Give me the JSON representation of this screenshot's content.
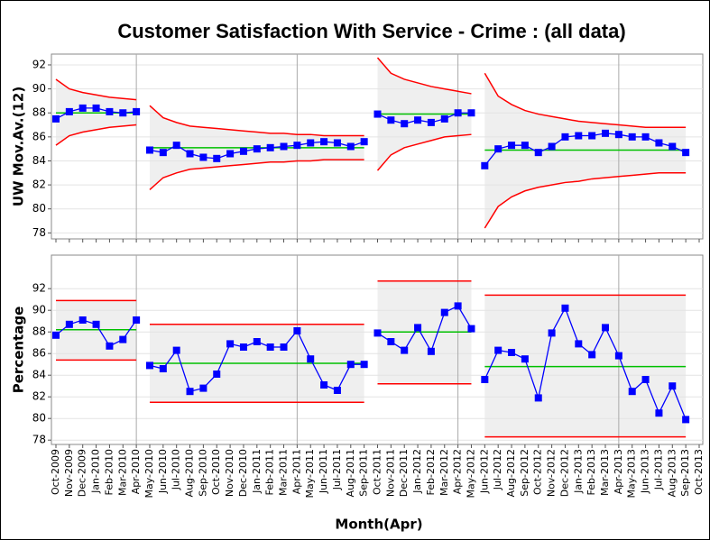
{
  "chart_data": {
    "title": "Customer Satisfaction With Service - Crime : (all data)",
    "x_label": "Month(Apr)",
    "categories": [
      "Oct-2009",
      "Nov-2009",
      "Dec-2009",
      "Jan-2010",
      "Feb-2010",
      "Mar-2010",
      "Apr-2010",
      "May-2010",
      "Jun-2010",
      "Jul-2010",
      "Aug-2010",
      "Sep-2010",
      "Oct-2010",
      "Nov-2010",
      "Dec-2010",
      "Jan-2011",
      "Feb-2011",
      "Mar-2011",
      "Apr-2011",
      "May-2011",
      "Jun-2011",
      "Jul-2011",
      "Aug-2011",
      "Sep-2011",
      "Oct-2011",
      "Nov-2011",
      "Dec-2011",
      "Jan-2012",
      "Feb-2012",
      "Mar-2012",
      "Apr-2012",
      "May-2012",
      "Jun-2012",
      "Jul-2012",
      "Aug-2012",
      "Sep-2012",
      "Oct-2012",
      "Nov-2012",
      "Dec-2012",
      "Jan-2013",
      "Feb-2013",
      "Mar-2013",
      "Apr-2013",
      "May-2013",
      "Jun-2013",
      "Jul-2013",
      "Aug-2013",
      "Sep-2013",
      "Oct-2013"
    ],
    "vertical_lines_at": [
      "Apr-2010",
      "Apr-2011",
      "Apr-2012",
      "Apr-2013"
    ],
    "panels": [
      {
        "type": "control",
        "y_label": "UW Mov.Av.(12)",
        "ylim": [
          77.5,
          92.9
        ],
        "yticks": [
          78,
          80,
          82,
          84,
          86,
          88,
          90,
          92
        ],
        "grid": true,
        "point_color": "#0000ff",
        "center_color": "#00c000",
        "limit_color": "#ff0000",
        "segments": [
          {
            "start": "Oct-2009",
            "values": [
              87.5,
              88.1,
              88.4,
              88.4,
              88.1,
              88.0,
              88.1
            ],
            "center": 88.0,
            "ucl": [
              90.8,
              90.0,
              89.7,
              89.5,
              89.3,
              89.2,
              89.1
            ],
            "lcl": [
              85.3,
              86.1,
              86.4,
              86.6,
              86.8,
              86.9,
              87.0
            ]
          },
          {
            "start": "May-2010",
            "values": [
              84.9,
              84.7,
              85.3,
              84.6,
              84.3,
              84.2,
              84.6,
              84.8,
              85.0,
              85.1,
              85.2,
              85.3,
              85.5,
              85.6,
              85.5,
              85.2,
              85.6
            ],
            "center": 85.1,
            "ucl": [
              88.6,
              87.6,
              87.2,
              86.9,
              86.8,
              86.7,
              86.6,
              86.5,
              86.4,
              86.3,
              86.3,
              86.2,
              86.2,
              86.1,
              86.1,
              86.1,
              86.1
            ],
            "lcl": [
              81.6,
              82.6,
              83.0,
              83.3,
              83.4,
              83.5,
              83.6,
              83.7,
              83.8,
              83.9,
              83.9,
              84.0,
              84.0,
              84.1,
              84.1,
              84.1,
              84.1
            ]
          },
          {
            "start": "Oct-2011",
            "values": [
              87.9,
              87.4,
              87.1,
              87.4,
              87.2,
              87.5,
              88.0,
              88.0
            ],
            "center": 87.9,
            "ucl": [
              92.6,
              91.3,
              90.8,
              90.5,
              90.2,
              90.0,
              89.8,
              89.6
            ],
            "lcl": [
              83.2,
              84.5,
              85.1,
              85.4,
              85.7,
              86.0,
              86.1,
              86.2
            ]
          },
          {
            "start": "Jun-2012",
            "values": [
              83.6,
              85.0,
              85.3,
              85.3,
              84.7,
              85.2,
              86.0,
              86.1,
              86.1,
              86.3,
              86.2,
              86.0,
              86.0,
              85.5,
              85.2,
              84.7
            ],
            "center": 84.9,
            "ucl": [
              91.3,
              89.4,
              88.7,
              88.2,
              87.9,
              87.7,
              87.5,
              87.3,
              87.2,
              87.1,
              87.0,
              86.9,
              86.8,
              86.8,
              86.8,
              86.8
            ],
            "lcl": [
              78.4,
              80.2,
              81.0,
              81.5,
              81.8,
              82.0,
              82.2,
              82.3,
              82.5,
              82.6,
              82.7,
              82.8,
              82.9,
              83.0,
              83.0,
              83.0
            ]
          }
        ]
      },
      {
        "type": "control",
        "y_label": "Percentage",
        "ylim": [
          77.6,
          95.1
        ],
        "yticks": [
          78,
          80,
          82,
          84,
          86,
          88,
          90,
          92
        ],
        "grid": true,
        "point_color": "#0000ff",
        "center_color": "#00c000",
        "limit_color": "#ff0000",
        "segments": [
          {
            "start": "Oct-2009",
            "values": [
              87.7,
              88.7,
              89.1,
              88.7,
              86.7,
              87.3,
              89.1
            ],
            "center": 88.2,
            "ucl": 90.9,
            "lcl": 85.4
          },
          {
            "start": "May-2010",
            "values": [
              84.9,
              84.6,
              86.3,
              82.5,
              82.8,
              84.1,
              86.9,
              86.6,
              87.1,
              86.6,
              86.6,
              88.1,
              85.5,
              83.1,
              82.6,
              85.0,
              85.0
            ],
            "center": 85.1,
            "ucl": 88.7,
            "lcl": 81.5
          },
          {
            "start": "Oct-2011",
            "values": [
              87.9,
              87.1,
              86.3,
              88.4,
              86.2,
              89.8,
              90.4,
              88.3
            ],
            "center": 88.0,
            "ucl": 92.7,
            "lcl": 83.2
          },
          {
            "start": "Jun-2012",
            "values": [
              83.6,
              86.3,
              86.1,
              85.5,
              81.9,
              87.9,
              90.2,
              86.9,
              85.9,
              88.4,
              85.8,
              82.5,
              83.6,
              80.5,
              83.0,
              79.9
            ],
            "center": 84.8,
            "ucl": 91.4,
            "lcl": 78.3
          }
        ]
      }
    ]
  }
}
